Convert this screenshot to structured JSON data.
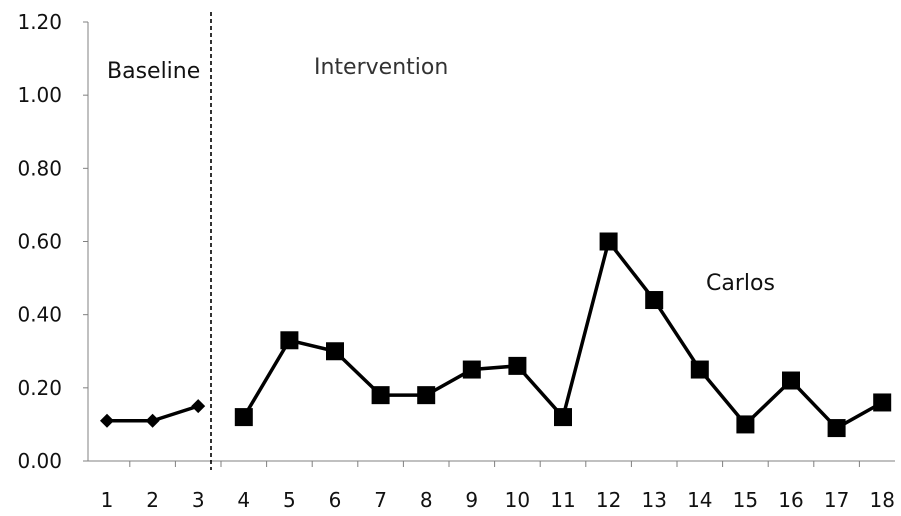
{
  "chart_data": {
    "type": "line",
    "title": "",
    "xlabel": "",
    "ylabel": "",
    "x": [
      1,
      2,
      3,
      4,
      5,
      6,
      7,
      8,
      9,
      10,
      11,
      12,
      13,
      14,
      15,
      16,
      17,
      18
    ],
    "x_tick_labels": [
      "1",
      "2",
      "3",
      "4",
      "5",
      "6",
      "7",
      "8",
      "9",
      "10",
      "11",
      "12",
      "13",
      "14",
      "15",
      "16",
      "17",
      "18"
    ],
    "y_tick_labels": [
      "0.00",
      "0.20",
      "0.40",
      "0.60",
      "0.80",
      "1.00",
      "1.20"
    ],
    "ylim": [
      0,
      1.2
    ],
    "grid": false,
    "series": [
      {
        "name": "Baseline",
        "marker": "diamond",
        "x": [
          1,
          2,
          3
        ],
        "values": [
          0.11,
          0.11,
          0.15
        ]
      },
      {
        "name": "Intervention",
        "marker": "square",
        "x": [
          4,
          5,
          6,
          7,
          8,
          9,
          10,
          11,
          12,
          13,
          14,
          15,
          16,
          17,
          18
        ],
        "values": [
          0.12,
          0.33,
          0.3,
          0.18,
          0.18,
          0.25,
          0.26,
          0.12,
          0.6,
          0.44,
          0.25,
          0.1,
          0.22,
          0.09,
          0.16
        ]
      }
    ],
    "phase_change_after_x": 3,
    "annotations": {
      "baseline": "Baseline",
      "intervention": "Intervention",
      "participant": "Carlos"
    },
    "colors": {
      "line": "#000000",
      "marker": "#000000"
    }
  }
}
